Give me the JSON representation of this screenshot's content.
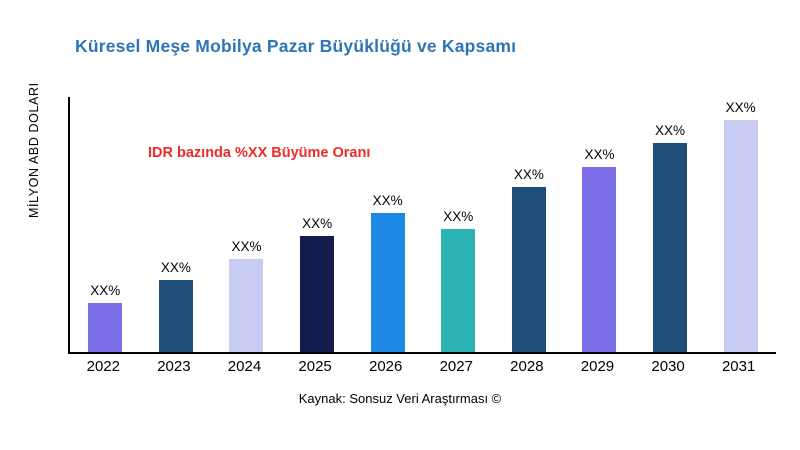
{
  "chart_data": {
    "type": "bar",
    "title": "Küresel Meşe Mobilya Pazar Büyüklüğü ve Kapsamı",
    "xlabel": "",
    "ylabel": "MİLYON ABD DOLARI",
    "annotation": "IDR bazında %XX Büyüme Oranı",
    "source": "Kaynak: Sonsuz Veri Araştırması ©",
    "categories": [
      "2022",
      "2023",
      "2024",
      "2025",
      "2026",
      "2027",
      "2028",
      "2029",
      "2030",
      "2031"
    ],
    "values": [
      21,
      31,
      40,
      50,
      60,
      53,
      71,
      80,
      90,
      100
    ],
    "bar_labels": [
      "XX%",
      "XX%",
      "XX%",
      "XX%",
      "XX%",
      "XX%",
      "XX%",
      "XX%",
      "XX%",
      "XX%"
    ],
    "bar_colors": [
      "#7C6FE8",
      "#1F4E79",
      "#C9CCF2",
      "#141B4D",
      "#1E88E5",
      "#2BB3B3",
      "#1F4E79",
      "#7C6FE8",
      "#1F4E79",
      "#C9CCF2"
    ],
    "ylim": [
      0,
      110
    ],
    "grid": false,
    "legend_position": "none",
    "title_color": "#2E75B6",
    "annotation_color": "#EE2B2B",
    "axis_color": "#000000"
  }
}
